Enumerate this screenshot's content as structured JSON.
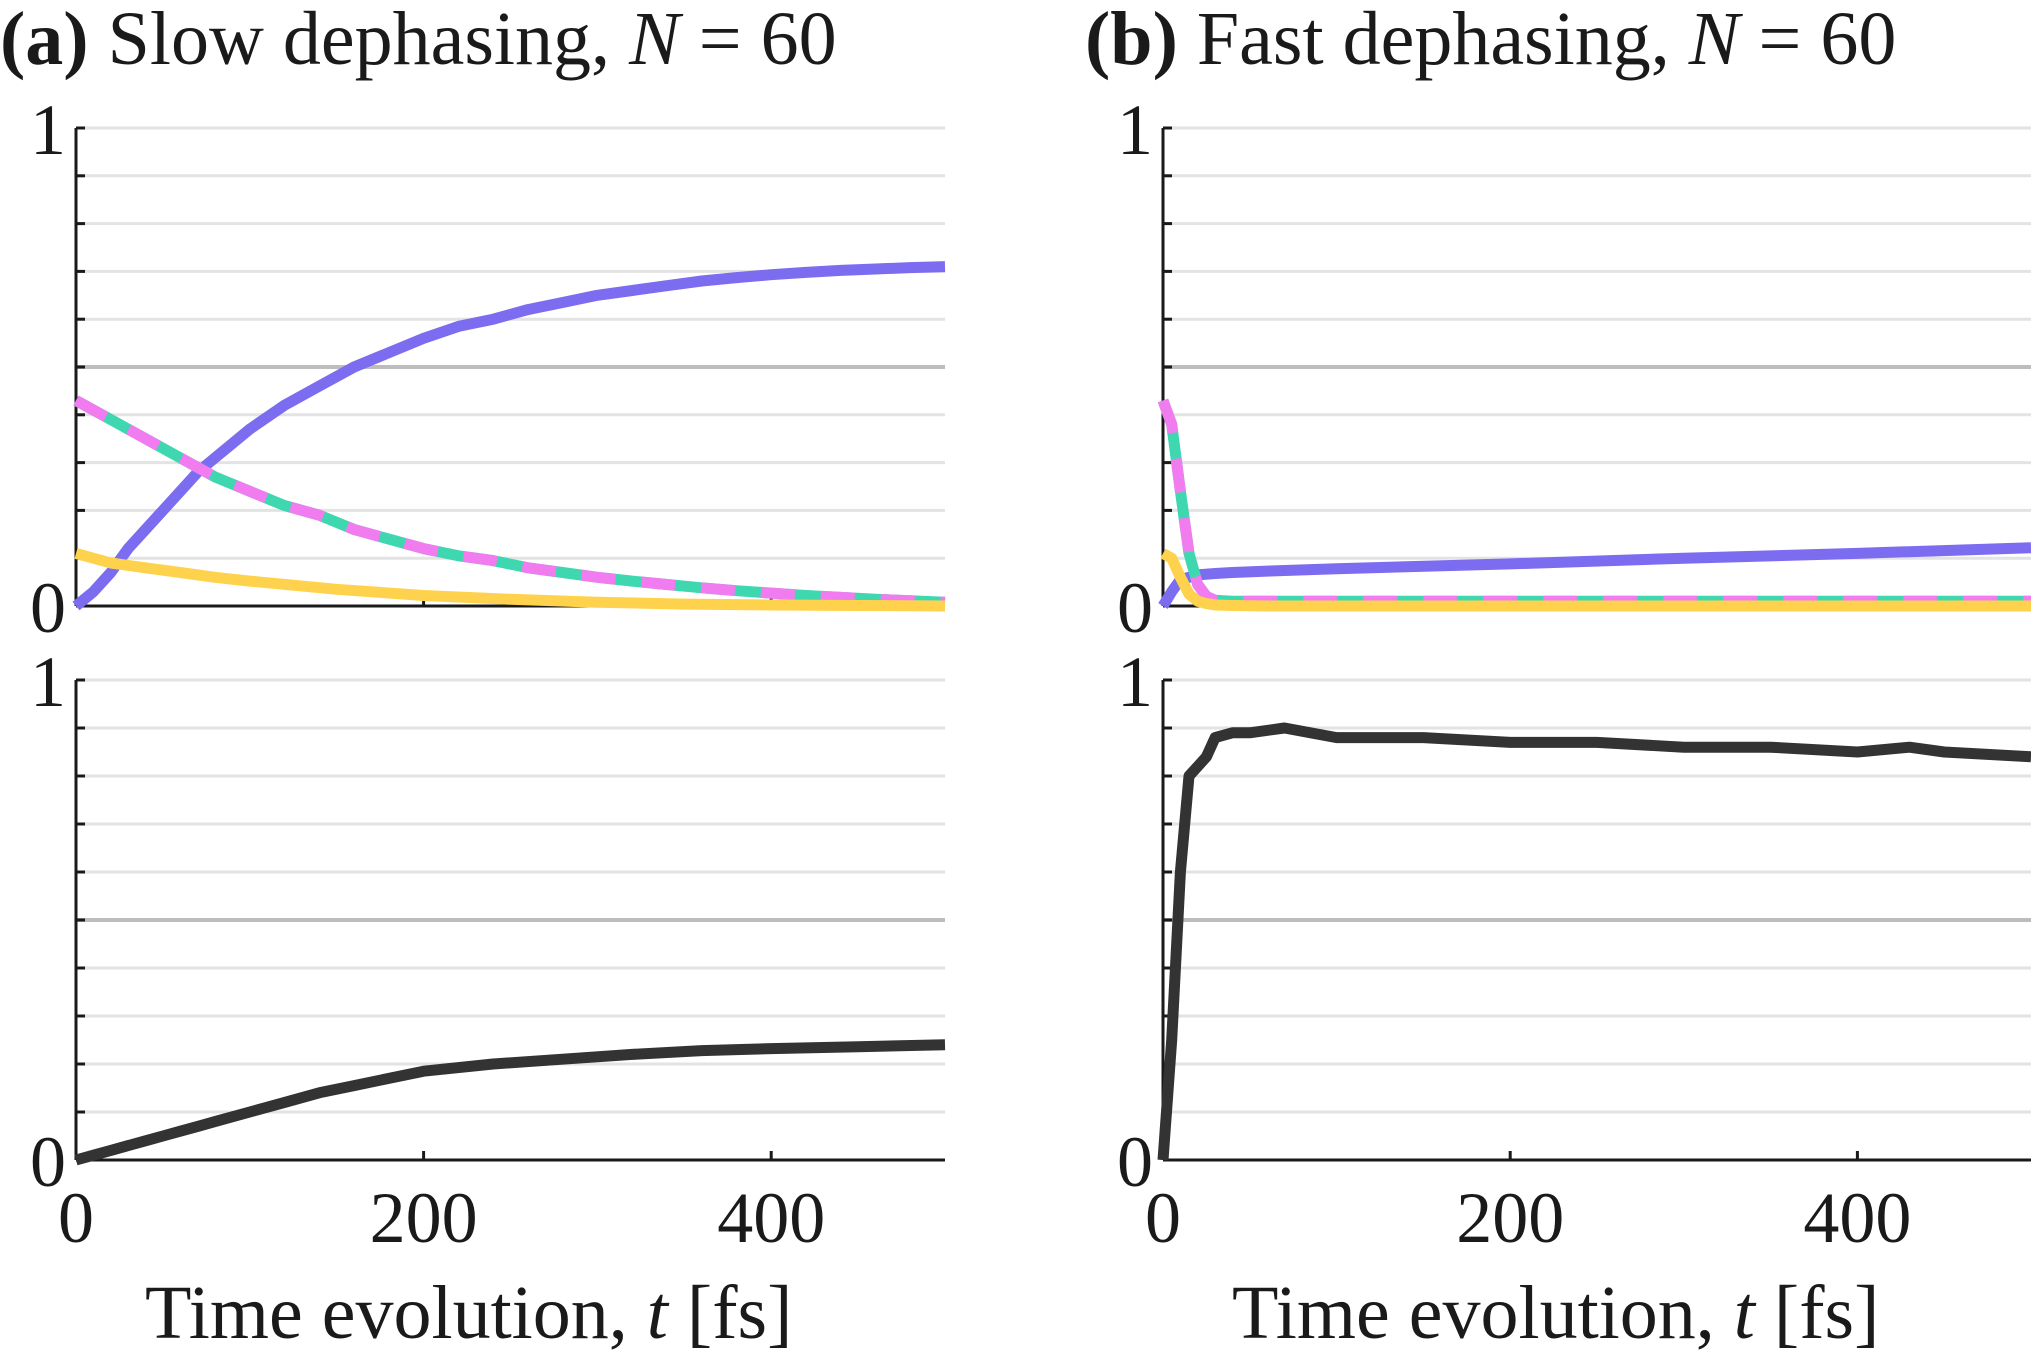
{
  "colors": {
    "purple": "#7b6cf0",
    "teal": "#3fd7b0",
    "pink": "#f07cf0",
    "yellow": "#ffd24d",
    "black": "#333333",
    "grid_major": "#bdbdbd",
    "grid_minor": "#e3e3e3",
    "axis": "#1a1a1a"
  },
  "panels": [
    {
      "id": "a",
      "tag": "(a)",
      "title_text": "Slow dephasing,",
      "n_symbol": "N",
      "n_equals": "= 60",
      "xlabel_text": "Time evolution,",
      "xlabel_var": "t",
      "xlabel_unit": "[fs]"
    },
    {
      "id": "b",
      "tag": "(b)",
      "title_text": "Fast dephasing,",
      "n_symbol": "N",
      "n_equals": "= 60",
      "xlabel_text": "Time evolution,",
      "xlabel_var": "t",
      "xlabel_unit": "[fs]"
    }
  ],
  "chart_data": [
    {
      "panel": "a-top",
      "type": "line",
      "title": "(a) Slow dephasing, N = 60",
      "xlim": [
        0,
        500
      ],
      "ylim": [
        0,
        1
      ],
      "xticks": [
        0,
        200,
        400
      ],
      "yticklabels": [
        "0",
        "1"
      ],
      "show_xticklabels": false,
      "xlabel": "",
      "ylabel": "",
      "series": [
        {
          "name": "purple",
          "color": "#7b6cf0",
          "style": "solid",
          "x": [
            0,
            10,
            20,
            30,
            40,
            50,
            60,
            70,
            80,
            90,
            100,
            120,
            140,
            160,
            180,
            200,
            220,
            240,
            260,
            280,
            300,
            320,
            340,
            360,
            380,
            400,
            420,
            440,
            460,
            480,
            500
          ],
          "y": [
            0.0,
            0.03,
            0.07,
            0.12,
            0.16,
            0.2,
            0.24,
            0.28,
            0.31,
            0.34,
            0.37,
            0.42,
            0.46,
            0.5,
            0.53,
            0.56,
            0.585,
            0.6,
            0.62,
            0.635,
            0.65,
            0.66,
            0.67,
            0.68,
            0.687,
            0.693,
            0.698,
            0.702,
            0.705,
            0.708,
            0.71
          ]
        },
        {
          "name": "teal",
          "color": "#3fd7b0",
          "style": "solid",
          "x": [
            0,
            20,
            40,
            60,
            80,
            100,
            120,
            140,
            160,
            180,
            200,
            220,
            240,
            260,
            280,
            300,
            320,
            340,
            360,
            380,
            400,
            420,
            440,
            460,
            480,
            500
          ],
          "y": [
            0.43,
            0.39,
            0.35,
            0.31,
            0.27,
            0.24,
            0.21,
            0.19,
            0.16,
            0.14,
            0.12,
            0.105,
            0.095,
            0.08,
            0.07,
            0.06,
            0.052,
            0.045,
            0.038,
            0.032,
            0.027,
            0.022,
            0.018,
            0.014,
            0.011,
            0.008
          ]
        },
        {
          "name": "pink",
          "color": "#f07cf0",
          "style": "dashed",
          "x": [
            0,
            20,
            40,
            60,
            80,
            100,
            120,
            140,
            160,
            180,
            200,
            220,
            240,
            260,
            280,
            300,
            320,
            340,
            360,
            380,
            400,
            420,
            440,
            460,
            480,
            500
          ],
          "y": [
            0.43,
            0.39,
            0.35,
            0.31,
            0.27,
            0.24,
            0.21,
            0.19,
            0.16,
            0.14,
            0.12,
            0.105,
            0.095,
            0.08,
            0.07,
            0.06,
            0.052,
            0.045,
            0.038,
            0.032,
            0.027,
            0.022,
            0.018,
            0.014,
            0.011,
            0.008
          ]
        },
        {
          "name": "yellow",
          "color": "#ffd24d",
          "style": "solid",
          "x": [
            0,
            20,
            40,
            60,
            80,
            100,
            150,
            200,
            250,
            300,
            350,
            400,
            450,
            500
          ],
          "y": [
            0.11,
            0.09,
            0.08,
            0.07,
            0.06,
            0.052,
            0.035,
            0.022,
            0.014,
            0.008,
            0.004,
            0.002,
            0.001,
            0.0
          ]
        }
      ]
    },
    {
      "panel": "a-bottom",
      "type": "line",
      "xlim": [
        0,
        500
      ],
      "ylim": [
        0,
        1
      ],
      "xticks": [
        0,
        200,
        400
      ],
      "xticklabels": [
        "0",
        "200",
        "400"
      ],
      "yticklabels": [
        "0",
        "1"
      ],
      "xlabel": "Time evolution, t [fs]",
      "ylabel": "",
      "series": [
        {
          "name": "black",
          "color": "#333333",
          "style": "solid",
          "x": [
            0,
            10,
            20,
            30,
            40,
            50,
            60,
            70,
            80,
            100,
            120,
            140,
            160,
            180,
            200,
            240,
            280,
            320,
            360,
            400,
            450,
            500
          ],
          "y": [
            0.0,
            0.01,
            0.02,
            0.03,
            0.04,
            0.05,
            0.06,
            0.07,
            0.08,
            0.1,
            0.12,
            0.14,
            0.155,
            0.17,
            0.185,
            0.2,
            0.21,
            0.22,
            0.228,
            0.232,
            0.236,
            0.24
          ]
        }
      ]
    },
    {
      "panel": "b-top",
      "type": "line",
      "title": "(b) Fast dephasing, N = 60",
      "xlim": [
        0,
        500
      ],
      "ylim": [
        0,
        1
      ],
      "xticks": [
        0,
        200,
        400
      ],
      "yticklabels": [
        "0",
        "1"
      ],
      "show_xticklabels": false,
      "xlabel": "",
      "ylabel": "",
      "series": [
        {
          "name": "purple",
          "color": "#7b6cf0",
          "style": "solid",
          "x": [
            0,
            5,
            10,
            15,
            20,
            30,
            40,
            60,
            100,
            200,
            300,
            400,
            500
          ],
          "y": [
            0.0,
            0.03,
            0.055,
            0.06,
            0.065,
            0.068,
            0.07,
            0.073,
            0.078,
            0.088,
            0.1,
            0.11,
            0.122
          ]
        },
        {
          "name": "teal",
          "color": "#3fd7b0",
          "style": "solid",
          "x": [
            0,
            5,
            10,
            15,
            20,
            25,
            30,
            40,
            60,
            100,
            200,
            300,
            400,
            500
          ],
          "y": [
            0.43,
            0.38,
            0.24,
            0.11,
            0.045,
            0.02,
            0.012,
            0.01,
            0.01,
            0.01,
            0.01,
            0.01,
            0.01,
            0.01
          ]
        },
        {
          "name": "pink",
          "color": "#f07cf0",
          "style": "dashed",
          "x": [
            0,
            5,
            10,
            15,
            20,
            25,
            30,
            40,
            60,
            100,
            200,
            300,
            400,
            500
          ],
          "y": [
            0.43,
            0.38,
            0.24,
            0.11,
            0.045,
            0.02,
            0.012,
            0.01,
            0.01,
            0.01,
            0.01,
            0.01,
            0.01,
            0.01
          ]
        },
        {
          "name": "yellow",
          "color": "#ffd24d",
          "style": "solid",
          "x": [
            0,
            5,
            10,
            15,
            20,
            25,
            30,
            40,
            60,
            100,
            200,
            300,
            400,
            500
          ],
          "y": [
            0.11,
            0.1,
            0.06,
            0.025,
            0.01,
            0.005,
            0.002,
            0.001,
            0.0,
            0.0,
            0.0,
            0.0,
            0.0,
            0.0
          ]
        }
      ]
    },
    {
      "panel": "b-bottom",
      "type": "line",
      "xlim": [
        0,
        500
      ],
      "ylim": [
        0,
        1
      ],
      "xticks": [
        0,
        200,
        400
      ],
      "xticklabels": [
        "0",
        "200",
        "400"
      ],
      "yticklabels": [
        "0",
        "1"
      ],
      "xlabel": "Time evolution, t [fs]",
      "ylabel": "",
      "series": [
        {
          "name": "black",
          "color": "#333333",
          "style": "solid",
          "x": [
            0,
            5,
            10,
            15,
            20,
            25,
            30,
            40,
            50,
            70,
            100,
            150,
            200,
            250,
            300,
            350,
            400,
            430,
            450,
            500
          ],
          "y": [
            0.0,
            0.25,
            0.6,
            0.8,
            0.82,
            0.84,
            0.88,
            0.89,
            0.89,
            0.9,
            0.88,
            0.88,
            0.87,
            0.87,
            0.86,
            0.86,
            0.85,
            0.86,
            0.85,
            0.84
          ]
        }
      ]
    }
  ]
}
